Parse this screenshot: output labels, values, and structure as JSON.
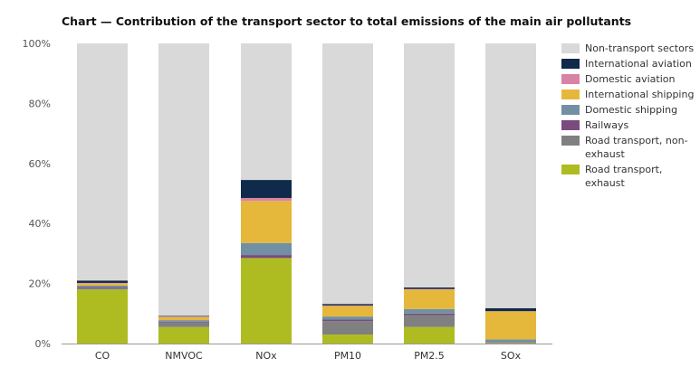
{
  "chart_data": {
    "type": "bar",
    "stacked": true,
    "title": "Chart — Contribution of the transport sector to total emissions of the main air pollutants",
    "xlabel": "",
    "ylabel": "",
    "ylim": [
      0,
      100
    ],
    "yticks": [
      0,
      20,
      40,
      60,
      80,
      100
    ],
    "ytick_labels": [
      "0%",
      "20%",
      "40%",
      "60%",
      "80%",
      "100%"
    ],
    "categories": [
      "CO",
      "NMVOC",
      "NOx",
      "PM10",
      "PM2.5",
      "SOx"
    ],
    "legend_position": "right",
    "series": [
      {
        "name": "Road transport, exhaust",
        "color": "#aebc21",
        "values": [
          18,
          5.5,
          28.5,
          3,
          5.5,
          0.2
        ]
      },
      {
        "name": "Road transport, non-exhaust",
        "color": "#808080",
        "values": [
          0.5,
          1.5,
          0,
          4.5,
          4,
          0
        ]
      },
      {
        "name": "Railways",
        "color": "#7b4a7f",
        "values": [
          0.3,
          0.3,
          1,
          0.5,
          0.5,
          0.2
        ]
      },
      {
        "name": "Domestic shipping",
        "color": "#7190a3",
        "values": [
          0.5,
          0.5,
          4,
          1,
          1.5,
          1
        ]
      },
      {
        "name": "International shipping",
        "color": "#e5b73b",
        "values": [
          0.7,
          1,
          14,
          3.5,
          6.5,
          9.3
        ]
      },
      {
        "name": "Domestic aviation",
        "color": "#d984a4",
        "values": [
          0.2,
          0.2,
          1,
          0.2,
          0.2,
          0.1
        ]
      },
      {
        "name": "International aviation",
        "color": "#0f2a4a",
        "values": [
          0.8,
          0.2,
          6,
          0.5,
          0.5,
          1
        ]
      },
      {
        "name": "Non-transport sectors",
        "color": "#d9d9d9",
        "values": [
          79,
          90.8,
          45.5,
          86.8,
          81.3,
          88.2
        ]
      }
    ],
    "legend_order": [
      "Non-transport sectors",
      "International aviation",
      "Domestic aviation",
      "International shipping",
      "Domestic shipping",
      "Railways",
      "Road transport, non-exhaust",
      "Road transport, exhaust"
    ],
    "colors": {
      "axis": "#999999",
      "tick_text": "#555555"
    }
  }
}
